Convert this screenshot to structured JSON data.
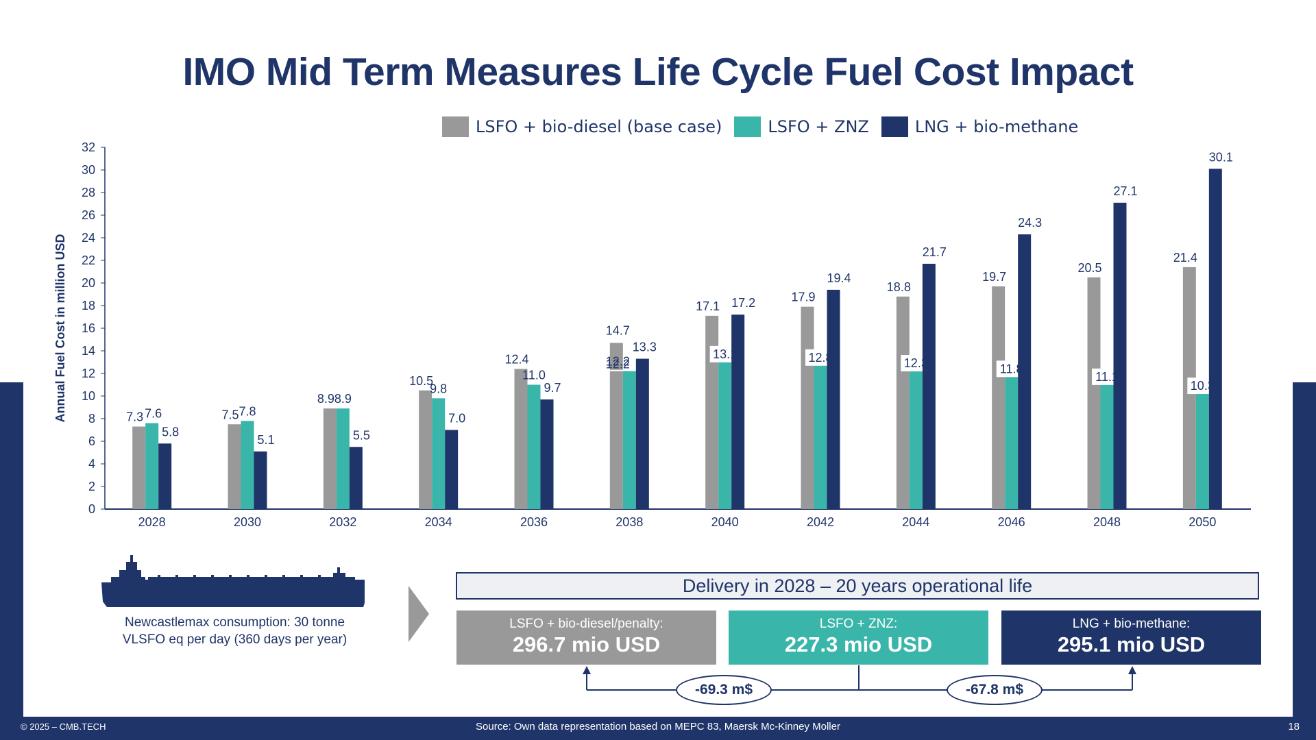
{
  "title": "IMO Mid Term Measures Life Cycle Fuel Cost Impact",
  "colors": {
    "grey": "#999999",
    "teal": "#3ab5a9",
    "navy": "#1f3468"
  },
  "chart_data": {
    "type": "bar",
    "title": "IMO Mid Term Measures Life Cycle Fuel Cost Impact",
    "xlabel": "",
    "ylabel": "Annual Fuel Cost in million USD",
    "ylim": [
      0,
      32
    ],
    "yticks": [
      0,
      2,
      4,
      6,
      8,
      10,
      12,
      14,
      16,
      18,
      20,
      22,
      24,
      26,
      28,
      30,
      32
    ],
    "grid": false,
    "legend_position": "top-center",
    "categories": [
      "2028",
      "2030",
      "2032",
      "2034",
      "2036",
      "2038",
      "2040",
      "2042",
      "2044",
      "2046",
      "2048",
      "2050"
    ],
    "series": [
      {
        "name": "LSFO + bio-diesel (base case)",
        "color": "#999999",
        "values": [
          7.3,
          7.5,
          8.9,
          10.5,
          12.4,
          14.7,
          17.1,
          17.9,
          18.8,
          19.7,
          20.5,
          21.4
        ],
        "segments": [
          null,
          null,
          null,
          null,
          null,
          {
            "lower": 12.2,
            "upper": 2.5
          },
          null,
          null,
          null,
          null,
          null,
          null
        ]
      },
      {
        "name": "LSFO + ZNZ",
        "color": "#3ab5a9",
        "values": [
          7.6,
          7.8,
          8.9,
          9.8,
          11.0,
          12.2,
          13.1,
          12.8,
          12.3,
          11.8,
          11.1,
          10.3
        ]
      },
      {
        "name": "LNG + bio-methane",
        "color": "#1f3468",
        "values": [
          5.8,
          5.1,
          5.5,
          7.0,
          9.7,
          13.3,
          17.2,
          19.4,
          21.7,
          24.3,
          27.1,
          30.1
        ]
      }
    ]
  },
  "ship": {
    "icon": "ship-icon",
    "caption_line1": "Newcastlemax consumption: 30 tonne",
    "caption_line2": "VLSFO eq per day (360 days per year)"
  },
  "summary": {
    "header": "Delivery in 2028 – 20 years operational life",
    "boxes": [
      {
        "label": "LSFO + bio-diesel/penalty:",
        "value": "296.7 mio USD"
      },
      {
        "label": "LSFO + ZNZ:",
        "value": "227.3 mio USD"
      },
      {
        "label": "LNG + bio-methane:",
        "value": "295.1 mio USD"
      }
    ],
    "diffs": [
      "-69.3 m$",
      "-67.8 m$"
    ]
  },
  "footer": {
    "copyright": "© 2025 – CMB.TECH",
    "source": "Source:  Own data representation based on MEPC 83, Maersk Mc-Kinney Moller",
    "page": "18"
  }
}
